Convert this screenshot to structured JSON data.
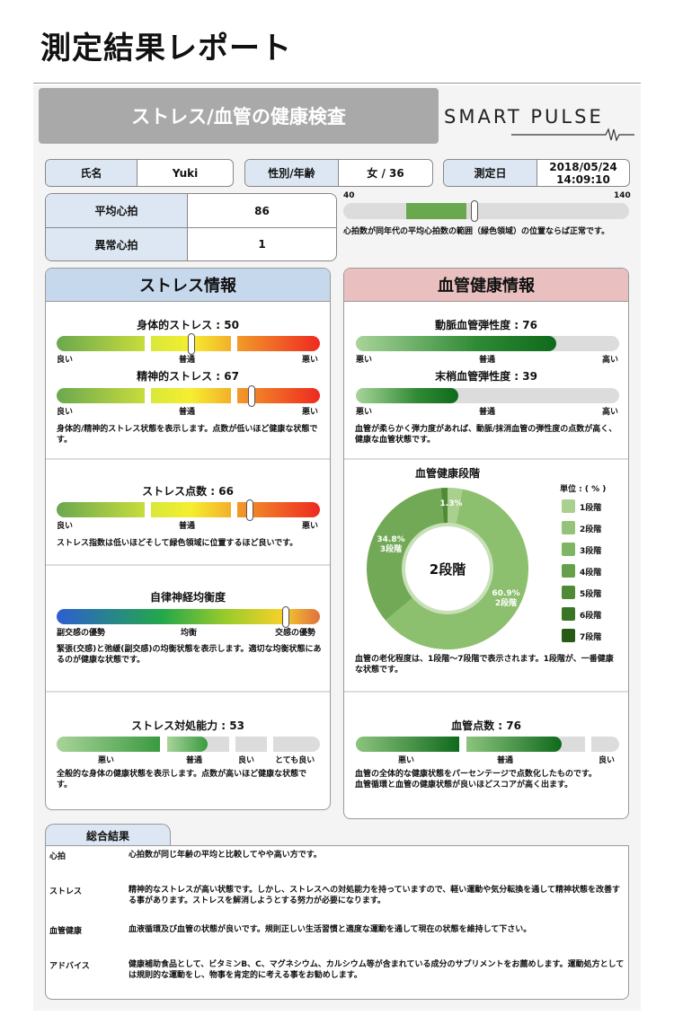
{
  "title": "測定結果レポート",
  "header": {
    "banner": "ストレス/血管の健康検査",
    "logo": "SMART PULSE"
  },
  "info": {
    "name_label": "氏名",
    "name": "Yuki",
    "sexage_label": "性別/年齢",
    "sexage": "女 / 36",
    "date_label": "測定日",
    "date": "2018/05/24",
    "time": "14:09:10"
  },
  "heart": {
    "avg_label": "平均心拍",
    "avg": "86",
    "abn_label": "異常心拍",
    "abn": "1",
    "scale_min": "40",
    "scale_max": "140",
    "normal_range": [
      62,
      83
    ],
    "value": 86,
    "note": "心拍数が同年代の平均心拍数の範囲（緑色領域）の位置ならば正常です。"
  },
  "stress": {
    "title": "ストレス情報",
    "physical": {
      "label": "身体的ストレス : 50",
      "value": 50
    },
    "mental": {
      "label": "精神的ストレス : 67",
      "value": 67
    },
    "scale": [
      "良い",
      "普通",
      "悪い"
    ],
    "desc1": "身体的/精神的ストレス状態を表示します。点数が低いほど健康な状態です。",
    "score": {
      "label": "ストレス点数 : 66",
      "value": 66
    },
    "desc2": "ストレス指数は低いほどそして緑色領域に位置するほど良いです。",
    "ans": {
      "label": "自律神経均衡度",
      "level": 0.87,
      "scale": [
        "副交感の優勢",
        "均衡",
        "交感の優勢"
      ]
    },
    "desc3": "緊張(交感)と弛緩(副交感)の均衡状態を表示します。適切な均衡状態にあるのが健康な状態です。",
    "coping": {
      "label": "ストレス対処能力 : 53",
      "value": 53,
      "scale": [
        "悪い",
        "普通",
        "良い",
        "とても良い"
      ]
    },
    "desc4": "全般的な身体の健康状態を表示します。点数が高いほど健康な状態です。"
  },
  "vascular": {
    "title": "血管健康情報",
    "artery": {
      "label": "動脈血管弾性度 : 76",
      "value": 76
    },
    "peripheral": {
      "label": "末梢血管弾性度 : 39",
      "value": 39
    },
    "scale": [
      "悪い",
      "普通",
      "高い"
    ],
    "desc1": "血管が柔らかく弾力度があれば、動脈/抹消血管の弾性度の点数が高く、健康な血管状態です。",
    "stage_title": "血管健康段階",
    "unit": "単位 : ( % )",
    "center": "2段階",
    "slice_labels": {
      "s1": "1.3%",
      "s2": "60.9%",
      "s2b": "2段階",
      "s3": "34.8%",
      "s3b": "3段階"
    },
    "legend": [
      "1段階",
      "2段階",
      "3段階",
      "4段階",
      "5段階",
      "6段階",
      "7段階"
    ],
    "legend_colors": [
      "#a9d08e",
      "#94c47a",
      "#7fb565",
      "#66a04a",
      "#4f8a36",
      "#3a7425",
      "#265a15"
    ],
    "desc2": "血管の老化程度は、1段階〜7段階で表示されます。1段階が、一番健康な状態です。",
    "score": {
      "label": "血管点数 : 76",
      "value": 76,
      "scale": [
        "悪い",
        "普通",
        "良い"
      ]
    },
    "desc3": "血管の全体的な健康状態をパーセンテージで点数化したものです。",
    "desc4": "血管循環と血管の健康状態が良いほどスコアが高く出ます。"
  },
  "chart_data": {
    "type": "pie",
    "title": "血管健康段階",
    "categories": [
      "1段階",
      "2段階",
      "3段階",
      "4段階"
    ],
    "values": [
      3.0,
      60.9,
      34.8,
      1.3
    ],
    "center_label": "2段階",
    "legend_placement": "right"
  },
  "summary": {
    "title": "総合結果",
    "rows": [
      {
        "k": "心拍",
        "t": "心拍数が同じ年齢の平均と比較してやや高い方です。"
      },
      {
        "k": "ストレス",
        "t": "精神的なストレスが高い状態です。しかし、ストレスへの対処能力を持っていますので、軽い運動や気分転換を通して精神状態を改善する事があります。ストレスを解消しようとする努力が必要になります。"
      },
      {
        "k": "血管健康",
        "t": "血液循環及び血管の状態が良いです。規則正しい生活習慣と適度な運動を通して現在の状態を維持して下さい。"
      },
      {
        "k": "アドバイス",
        "t": "健康補助食品として、ビタミンB、C、マグネシウム、カルシウム等が含まれている成分のサプリメントをお薦めします。運動処方としては規則的な運動をし、物事を肯定的に考える事をお勧めします。"
      }
    ]
  }
}
